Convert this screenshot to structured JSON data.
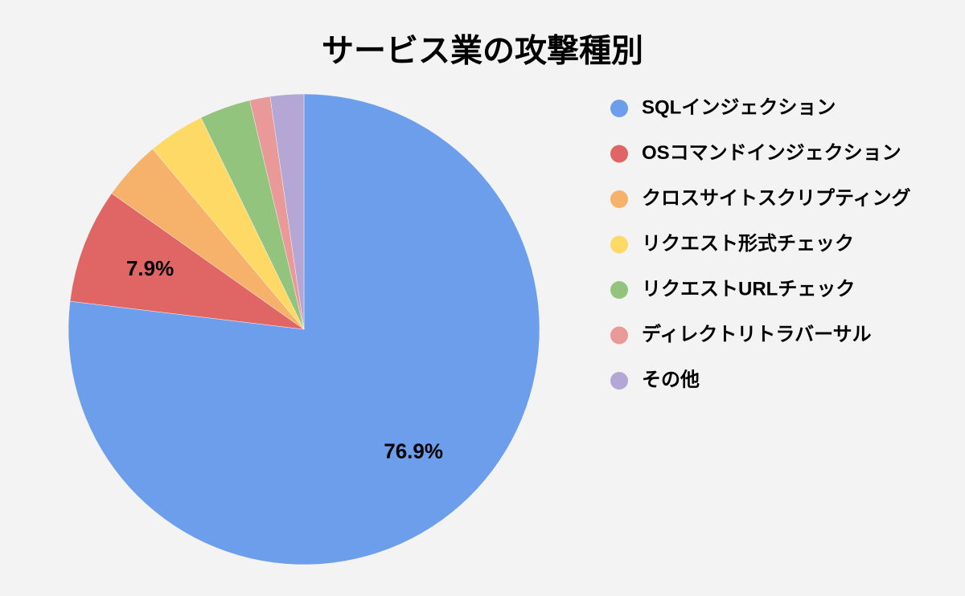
{
  "chart_data": {
    "type": "pie",
    "title": "サービス業の攻撃種別",
    "categories": [
      "SQLインジェクション",
      "OSコマンドインジェクション",
      "クロスサイトスクリプティング",
      "リクエスト形式チェック",
      "リクエストURLチェック",
      "ディレクトリトラバーサル",
      "その他"
    ],
    "values": [
      76.9,
      7.9,
      4.1,
      3.9,
      3.5,
      1.4,
      2.3
    ],
    "value_labels": [
      "76.9%",
      "7.9%",
      null,
      null,
      null,
      null,
      null
    ],
    "colors": [
      "#6d9eeb",
      "#e06666",
      "#f6b26b",
      "#ffd966",
      "#93c47d",
      "#ea9999",
      "#b4a7d6"
    ],
    "legend": "right"
  }
}
